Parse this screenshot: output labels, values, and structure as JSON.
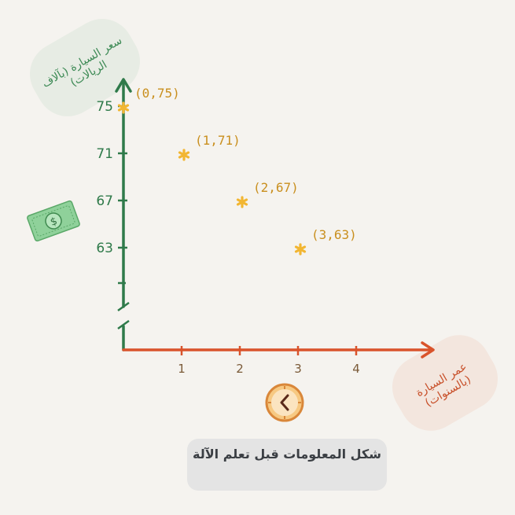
{
  "chart_data": {
    "type": "scatter",
    "title": "شكل المعلومات قبل تعلم الآلة",
    "xlabel": "عمر السيارة (بالسنوات)",
    "ylabel": "سعر السيارة (بآلاف الريالات)",
    "x_ticks": [
      "1",
      "2",
      "3",
      "4"
    ],
    "y_ticks": [
      "63",
      "67",
      "71",
      "75"
    ],
    "xlim": [
      0,
      4.3
    ],
    "ylim": [
      60,
      76
    ],
    "y_axis_break": true,
    "grid": false,
    "points": [
      {
        "x": 0,
        "y": 75,
        "label": "(0,75)"
      },
      {
        "x": 1,
        "y": 71,
        "label": "(1,71)"
      },
      {
        "x": 2,
        "y": 67,
        "label": "(2,67)"
      },
      {
        "x": 3,
        "y": 63,
        "label": "(3,63)"
      }
    ],
    "colors": {
      "y_axis": "#2f7a4a",
      "x_axis": "#d9532b",
      "points": "#f2b632",
      "point_labels": "#c98f1e"
    },
    "icons": [
      "dollar-bill-icon",
      "clock-icon"
    ]
  }
}
